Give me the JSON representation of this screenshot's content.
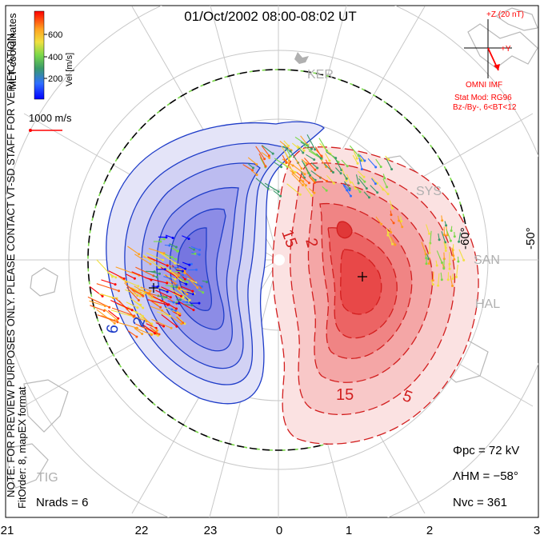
{
  "title": "01/Oct/2002 08:00-08:02 UT",
  "side_note": {
    "line1": "NOTE: FOR PREVIEW PURPOSES ONLY. PLEASE CONTACT VT-SD STAFF FOR VERIFICATION.",
    "line2": "FitOrder: 8, mapEX format"
  },
  "coord_label": "MLT coordinates",
  "color_scale": {
    "label": "Vel [m/s]",
    "ticks": [
      "600",
      "400",
      "200"
    ],
    "colors": [
      "#0000ff",
      "#2f6fff",
      "#3a9a6a",
      "#7ad84a",
      "#f0e040",
      "#ffa020",
      "#ff5a10",
      "#ff0000"
    ]
  },
  "vector_scale": {
    "label": "1000 m/s"
  },
  "imf": {
    "z_label": "+Z (20 nT)",
    "y_label": "+Y",
    "source": "OMNI IMF",
    "model_line1": "Stat Mod: RG96",
    "model_line2": "Bz-/By-, 6<BT<12"
  },
  "stations": [
    "KER",
    "SYS",
    "SAN",
    "HAL",
    "TIG"
  ],
  "lat_labels": [
    "-50°",
    "-60°"
  ],
  "contour_labels": [
    "6",
    "2",
    "15",
    "2",
    "15",
    "5"
  ],
  "mlt_ticks": [
    "21",
    "22",
    "23",
    "0",
    "1",
    "2",
    "3"
  ],
  "stats": {
    "phi_pc": "Φpc = 72 kV",
    "lambda_hm": "ΛHM = −58°",
    "n_vc": "Nvc = 361",
    "n_rads": "Nrads = 6"
  }
}
